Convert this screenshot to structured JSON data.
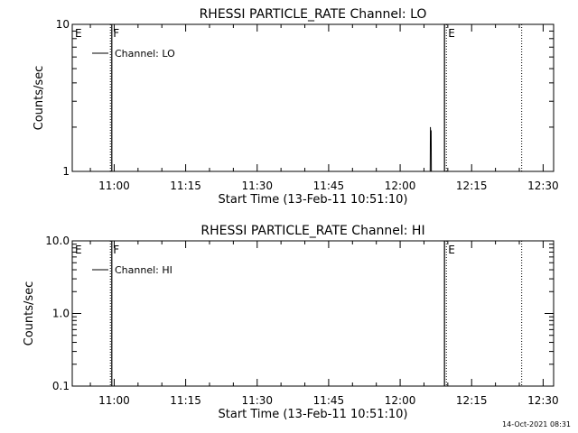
{
  "footer": {
    "timestamp": "14-Oct-2021 08:31"
  },
  "chart_data": [
    {
      "type": "line",
      "title": "RHESSI PARTICLE_RATE Channel: LO",
      "xlabel": "Start Time (13-Feb-11 10:51:10)",
      "ylabel": "Counts/sec",
      "x_ticks": [
        "11:00",
        "11:15",
        "11:30",
        "11:45",
        "12:00",
        "12:15",
        "12:30"
      ],
      "x_tick_minutes": [
        660,
        675,
        690,
        705,
        720,
        735,
        750
      ],
      "xlim_minutes": [
        651.2,
        752.2
      ],
      "y_scale": "log",
      "ylim": [
        1,
        10
      ],
      "y_ticks": [
        "1",
        "10"
      ],
      "y_tick_values": [
        1,
        10
      ],
      "legend": {
        "position": "top-left",
        "entries": [
          "Channel: LO"
        ]
      },
      "flags": [
        {
          "label": "E",
          "minute": 651.2
        },
        {
          "label": "F",
          "minute": 659.2
        },
        {
          "label": "E",
          "minute": 729.5
        }
      ],
      "solid_lines_minutes": [
        659.5,
        729.3
      ],
      "dotted_lines_minutes": [
        659.2,
        729.7,
        745.5
      ],
      "series": [
        {
          "name": "Channel: LO",
          "x_minutes": [
            726.2,
            726.3,
            726.35,
            726.45,
            726.5,
            726.55,
            726.65
          ],
          "values": [
            1,
            1,
            2,
            1.6,
            1.9,
            1,
            1
          ]
        }
      ]
    },
    {
      "type": "line",
      "title": "RHESSI PARTICLE_RATE Channel: HI",
      "xlabel": "Start Time (13-Feb-11 10:51:10)",
      "ylabel": "Counts/sec",
      "x_ticks": [
        "11:00",
        "11:15",
        "11:30",
        "11:45",
        "12:00",
        "12:15",
        "12:30"
      ],
      "x_tick_minutes": [
        660,
        675,
        690,
        705,
        720,
        735,
        750
      ],
      "xlim_minutes": [
        651.2,
        752.2
      ],
      "y_scale": "log",
      "ylim": [
        0.1,
        10
      ],
      "y_ticks": [
        "0.1",
        "1.0",
        "10.0"
      ],
      "y_tick_values": [
        0.1,
        1,
        10
      ],
      "legend": {
        "position": "top-left",
        "entries": [
          "Channel: HI"
        ]
      },
      "flags": [
        {
          "label": "E",
          "minute": 651.2
        },
        {
          "label": "F",
          "minute": 659.2
        },
        {
          "label": "E",
          "minute": 729.5
        }
      ],
      "solid_lines_minutes": [
        659.5,
        729.3
      ],
      "dotted_lines_minutes": [
        659.2,
        729.7,
        745.5
      ],
      "series": [
        {
          "name": "Channel: HI",
          "x_minutes": [],
          "values": []
        }
      ]
    }
  ]
}
